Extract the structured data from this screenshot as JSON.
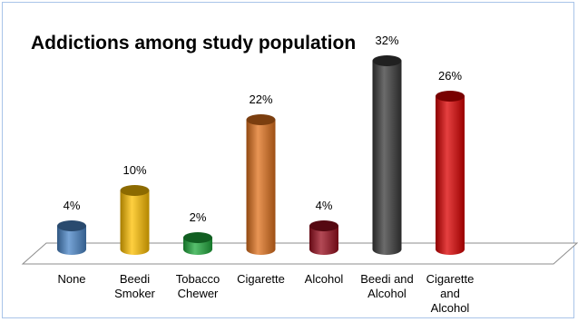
{
  "chart_data": {
    "type": "bar",
    "title": "Addictions among study population",
    "categories": [
      [
        "None"
      ],
      [
        "Beedi",
        "Smoker"
      ],
      [
        "Tobacco",
        "Chewer"
      ],
      [
        "Cigarette"
      ],
      [
        "Alcohol"
      ],
      [
        "Beedi and",
        "Alcohol"
      ],
      [
        "Cigarette",
        "and",
        "Alcohol"
      ]
    ],
    "values": [
      4,
      10,
      2,
      22,
      4,
      32,
      26
    ],
    "value_labels": [
      "4%",
      "10%",
      "2%",
      "22%",
      "4%",
      "32%",
      "26%"
    ],
    "unit": "%",
    "bar_colors": [
      "#4a86c8",
      "#ffc000",
      "#1faa3c",
      "#e0711c",
      "#9a0e1e",
      "#3a3a3a",
      "#dc0000"
    ],
    "ylim": [
      0,
      32
    ],
    "grid": false,
    "legend": "none",
    "style": "3d-cylinder"
  }
}
